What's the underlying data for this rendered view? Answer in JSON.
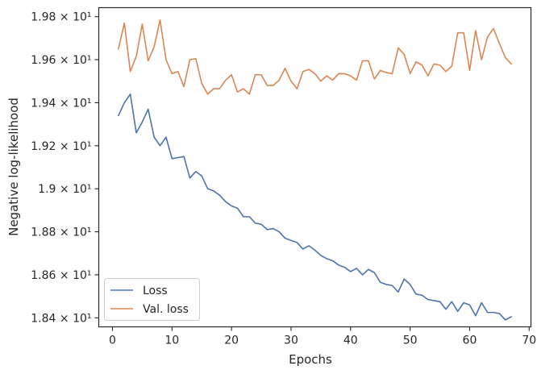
{
  "chart_data": {
    "type": "line",
    "xlabel": "Epochs",
    "ylabel": "Negative log-likelihood",
    "xlim": [
      -2.3,
      70.3
    ],
    "ylim": [
      18.358,
      19.842
    ],
    "xticks": [
      0,
      10,
      20,
      30,
      40,
      50,
      60,
      70
    ],
    "yticks": [
      {
        "value": 18.4,
        "label": "1.84 × 10¹"
      },
      {
        "value": 18.6,
        "label": "1.86 × 10¹"
      },
      {
        "value": 18.8,
        "label": "1.88 × 10¹"
      },
      {
        "value": 19.0,
        "label": "1.9 × 10¹"
      },
      {
        "value": 19.2,
        "label": "1.92 × 10¹"
      },
      {
        "value": 19.4,
        "label": "1.94 × 10¹"
      },
      {
        "value": 19.6,
        "label": "1.96 × 10¹"
      },
      {
        "value": 19.8,
        "label": "1.98 × 10¹"
      }
    ],
    "legend_position": "lower-left",
    "grid": false,
    "x": [
      1,
      2,
      3,
      4,
      5,
      6,
      7,
      8,
      9,
      10,
      11,
      12,
      13,
      14,
      15,
      16,
      17,
      18,
      19,
      20,
      21,
      22,
      23,
      24,
      25,
      26,
      27,
      28,
      29,
      30,
      31,
      32,
      33,
      34,
      35,
      36,
      37,
      38,
      39,
      40,
      41,
      42,
      43,
      44,
      45,
      46,
      47,
      48,
      49,
      50,
      51,
      52,
      53,
      54,
      55,
      56,
      57,
      58,
      59,
      60,
      61,
      62,
      63,
      64,
      65,
      66,
      67
    ],
    "series": [
      {
        "name": "Loss",
        "color": "#4c72b0",
        "values": [
          19.34,
          19.4,
          19.44,
          19.26,
          19.31,
          19.37,
          19.24,
          19.2,
          19.24,
          19.14,
          19.145,
          19.15,
          19.05,
          19.08,
          19.06,
          19.0,
          18.99,
          18.97,
          18.94,
          18.92,
          18.91,
          18.87,
          18.87,
          18.84,
          18.835,
          18.81,
          18.815,
          18.8,
          18.77,
          18.76,
          18.75,
          18.72,
          18.735,
          18.715,
          18.69,
          18.675,
          18.665,
          18.645,
          18.635,
          18.615,
          18.63,
          18.6,
          18.625,
          18.61,
          18.565,
          18.555,
          18.55,
          18.52,
          18.58,
          18.555,
          18.51,
          18.505,
          18.485,
          18.48,
          18.475,
          18.44,
          18.475,
          18.43,
          18.47,
          18.46,
          18.41,
          18.47,
          18.425,
          18.425,
          18.42,
          18.39,
          18.405
        ]
      },
      {
        "name": "Val. loss",
        "color": "#dd8452",
        "values": [
          19.65,
          19.77,
          19.545,
          19.615,
          19.765,
          19.595,
          19.66,
          19.785,
          19.6,
          19.535,
          19.545,
          19.475,
          19.6,
          19.605,
          19.49,
          19.44,
          19.465,
          19.465,
          19.505,
          19.53,
          19.45,
          19.465,
          19.44,
          19.53,
          19.53,
          19.48,
          19.48,
          19.505,
          19.56,
          19.5,
          19.465,
          19.545,
          19.555,
          19.535,
          19.5,
          19.525,
          19.505,
          19.535,
          19.535,
          19.525,
          19.505,
          19.595,
          19.595,
          19.51,
          19.55,
          19.54,
          19.535,
          19.655,
          19.625,
          19.535,
          19.59,
          19.575,
          19.525,
          19.58,
          19.575,
          19.545,
          19.57,
          19.725,
          19.725,
          19.55,
          19.735,
          19.6,
          19.705,
          19.745,
          19.675,
          19.61,
          19.58
        ]
      }
    ]
  }
}
